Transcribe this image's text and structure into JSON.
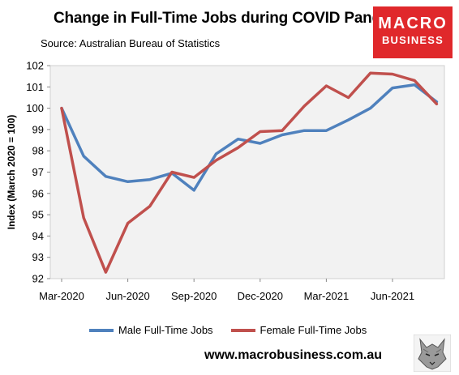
{
  "header": {
    "title": "Change in Full-Time Jobs during COVID Pandemic",
    "subtitle": "Source: Australian Bureau of Statistics"
  },
  "logo": {
    "line1": "MACRO",
    "line2": "BUSINESS",
    "color": "#e0282b"
  },
  "footer": {
    "url": "www.macrobusiness.com.au",
    "icon": "wolf-logo-icon"
  },
  "chart_data": {
    "type": "line",
    "ylabel": "Index (March 2020 = 100)",
    "xlabel": "",
    "ylim": [
      92,
      102
    ],
    "yticks": [
      92,
      93,
      94,
      95,
      96,
      97,
      98,
      99,
      100,
      101,
      102
    ],
    "xticks": [
      {
        "index": 0,
        "label": "Mar-2020"
      },
      {
        "index": 3,
        "label": "Jun-2020"
      },
      {
        "index": 6,
        "label": "Sep-2020"
      },
      {
        "index": 9,
        "label": "Dec-2020"
      },
      {
        "index": 12,
        "label": "Mar-2021"
      },
      {
        "index": 15,
        "label": "Jun-2021"
      }
    ],
    "x": [
      "Mar-2020",
      "Apr-2020",
      "May-2020",
      "Jun-2020",
      "Jul-2020",
      "Aug-2020",
      "Sep-2020",
      "Oct-2020",
      "Nov-2020",
      "Dec-2020",
      "Jan-2021",
      "Feb-2021",
      "Mar-2021",
      "Apr-2021",
      "May-2021",
      "Jun-2021",
      "Jul-2021",
      "Aug-2021"
    ],
    "series": [
      {
        "name": "Male Full-Time Jobs",
        "color": "#4f81bd",
        "values": [
          100.0,
          97.75,
          96.8,
          96.55,
          96.65,
          96.95,
          96.15,
          97.85,
          98.55,
          98.35,
          98.75,
          98.95,
          98.95,
          99.45,
          100.0,
          100.95,
          101.1,
          100.3
        ]
      },
      {
        "name": "Female Full-Time Jobs",
        "color": "#c0504d",
        "values": [
          100.0,
          94.85,
          92.3,
          94.6,
          95.4,
          97.0,
          96.75,
          97.55,
          98.15,
          98.9,
          98.95,
          100.1,
          101.05,
          100.5,
          101.65,
          101.6,
          101.3,
          100.2
        ]
      }
    ],
    "grid": false,
    "legend_position": "bottom"
  }
}
